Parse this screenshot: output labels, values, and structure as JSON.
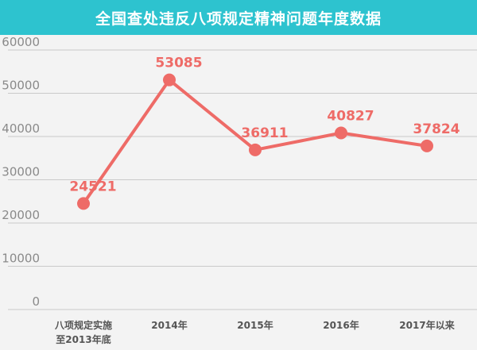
{
  "header": {
    "title": "全国查处违反八项规定精神问题年度数据"
  },
  "colors": {
    "header_bg": "#2dc3cf",
    "line": "#ee6b67",
    "label": "#ee6b67",
    "axis_text": "#8a8a8a",
    "grid": "#c9c9c9",
    "background": "#f3f3f3"
  },
  "chart_data": {
    "type": "line",
    "title": "全国查处违反八项规定精神问题年度数据",
    "categories": [
      [
        "八项规定实施",
        "至2013年底"
      ],
      [
        "2014年"
      ],
      [
        "2015年"
      ],
      [
        "2016年"
      ],
      [
        "2017年以来"
      ]
    ],
    "series": [
      {
        "values": [
          24521,
          53085,
          36911,
          40827,
          37824
        ]
      }
    ],
    "y_ticks": [
      0,
      10000,
      20000,
      30000,
      40000,
      50000,
      60000
    ],
    "ylim": [
      0,
      60000
    ],
    "grid": true,
    "legend": "none",
    "xlabel": "",
    "ylabel": ""
  }
}
